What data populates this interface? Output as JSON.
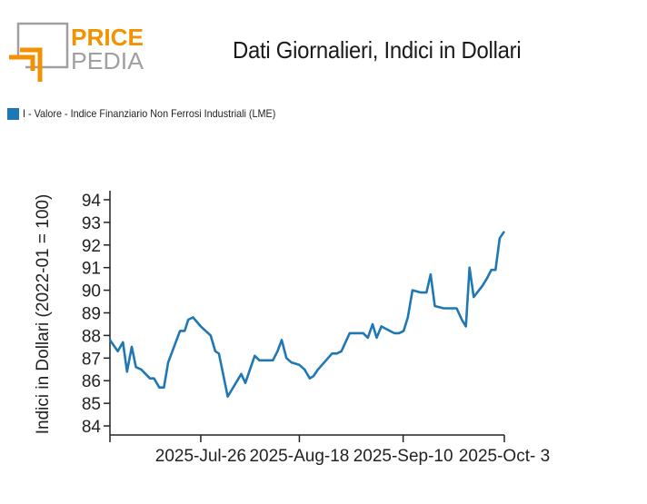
{
  "logo": {
    "line1": "PRICE",
    "line2": "PEDIA",
    "accent": "#f29200",
    "grey": "#a0a0a0"
  },
  "chart_data": {
    "type": "line",
    "title": "Dati Giornalieri, Indici in Dollari",
    "ylabel": "Indici in Dollari (2022-01 = 100)",
    "xlabel": "",
    "ylim": [
      83.6,
      94.4
    ],
    "yticks": [
      84,
      85,
      86,
      87,
      88,
      89,
      90,
      91,
      92,
      93,
      94
    ],
    "xlim": [
      0,
      76
    ],
    "xticks": [
      {
        "x": 0,
        "label": ""
      },
      {
        "x": 17.5,
        "label": "2025-Jul-26"
      },
      {
        "x": 36.5,
        "label": "2025-Aug-18"
      },
      {
        "x": 56.5,
        "label": "2025-Sep-10"
      },
      {
        "x": 76,
        "label": "2025-Oct- 3"
      }
    ],
    "legend_position": "top-left",
    "color": "#1f77b4",
    "series": [
      {
        "name": "I - Valore - Indice Finanziario Non Ferrosi Industriali (LME)",
        "points": [
          [
            0,
            87.8
          ],
          [
            1.5,
            87.3
          ],
          [
            2.5,
            87.7
          ],
          [
            3.3,
            86.4
          ],
          [
            4.2,
            87.5
          ],
          [
            5,
            86.6
          ],
          [
            6,
            86.5
          ],
          [
            7.7,
            86.1
          ],
          [
            8.5,
            86.1
          ],
          [
            9.5,
            85.7
          ],
          [
            10.4,
            85.7
          ],
          [
            11.2,
            86.8
          ],
          [
            13.5,
            88.2
          ],
          [
            14.4,
            88.2
          ],
          [
            15.1,
            88.7
          ],
          [
            16,
            88.8
          ],
          [
            17.5,
            88.4
          ],
          [
            19.4,
            88.0
          ],
          [
            20.3,
            87.3
          ],
          [
            21,
            87.2
          ],
          [
            22.7,
            85.3
          ],
          [
            25.3,
            86.3
          ],
          [
            26.1,
            85.9
          ],
          [
            27.9,
            87.1
          ],
          [
            28.8,
            86.9
          ],
          [
            30.5,
            86.9
          ],
          [
            31.4,
            86.9
          ],
          [
            32.3,
            87.3
          ],
          [
            33.1,
            87.8
          ],
          [
            34,
            87.0
          ],
          [
            35,
            86.8
          ],
          [
            36.5,
            86.7
          ],
          [
            37.5,
            86.5
          ],
          [
            38.5,
            86.1
          ],
          [
            39.2,
            86.2
          ],
          [
            40.1,
            86.5
          ],
          [
            42.8,
            87.2
          ],
          [
            43.7,
            87.2
          ],
          [
            44.6,
            87.3
          ],
          [
            46.2,
            88.1
          ],
          [
            47.9,
            88.1
          ],
          [
            48.8,
            88.1
          ],
          [
            49.7,
            87.9
          ],
          [
            50.6,
            88.5
          ],
          [
            51.4,
            87.9
          ],
          [
            52.3,
            88.4
          ],
          [
            53.1,
            88.3
          ],
          [
            54.8,
            88.1
          ],
          [
            55.7,
            88.1
          ],
          [
            56.6,
            88.2
          ],
          [
            57.4,
            88.8
          ],
          [
            58.3,
            90.0
          ],
          [
            59.9,
            89.9
          ],
          [
            61,
            89.9
          ],
          [
            61.8,
            90.7
          ],
          [
            62.6,
            89.3
          ],
          [
            64.3,
            89.2
          ],
          [
            66.8,
            89.2
          ],
          [
            67.8,
            88.7
          ],
          [
            68.6,
            88.4
          ],
          [
            69.3,
            91.0
          ],
          [
            70.1,
            89.7
          ],
          [
            71.8,
            90.2
          ],
          [
            72.6,
            90.5
          ],
          [
            73.5,
            90.9
          ],
          [
            74.3,
            90.9
          ],
          [
            75.1,
            92.3
          ],
          [
            76,
            92.6
          ]
        ]
      }
    ]
  }
}
